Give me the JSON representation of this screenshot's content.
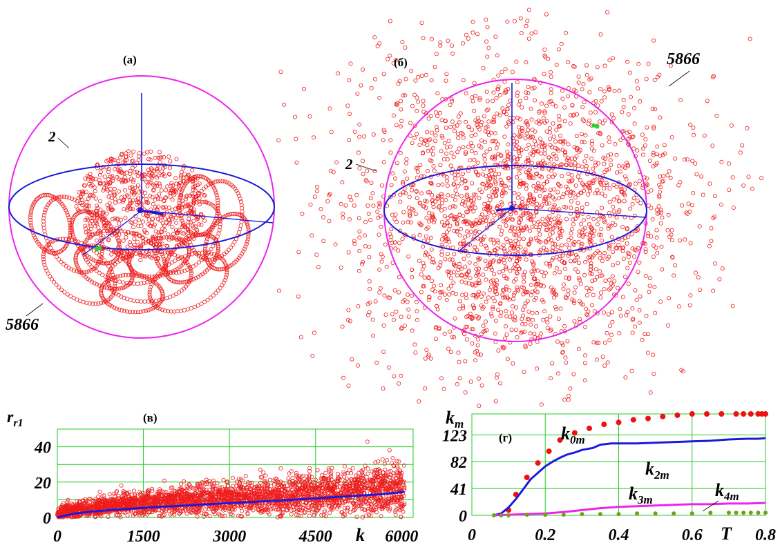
{
  "chart_data": [
    {
      "type": "scatter",
      "panel": "(а)",
      "labels": [
        "2",
        "5866"
      ],
      "colors": {
        "points": "#ee1c1c",
        "sphere": "#ee22ee",
        "axes": "#1a1adc",
        "marker": "#33cc33"
      }
    },
    {
      "type": "scatter",
      "panel": "(б)",
      "labels": [
        "2",
        "5866"
      ],
      "colors": {
        "points": "#ee1c1c",
        "sphere": "#ee22ee",
        "axes": "#1a1adc",
        "marker": "#33cc33"
      }
    },
    {
      "type": "scatter",
      "panel": "(в)",
      "xlabel": "k",
      "ylabel_main": "r",
      "ylabel_sub": "r1",
      "xticks": [
        0,
        1500,
        3000,
        4500,
        6000
      ],
      "yticks": [
        0,
        20,
        40
      ],
      "xlim": [
        0,
        6200
      ],
      "ylim": [
        0,
        50
      ],
      "grid": true,
      "series": [
        {
          "kind": "scatter",
          "color": "#ee1c1c",
          "x": [
            100,
            300,
            500,
            800,
            1000,
            1200,
            1500,
            1800,
            2000,
            2300,
            2600,
            3000,
            3300,
            3600,
            4000,
            4300,
            4600,
            5000,
            5300,
            5600,
            6000
          ],
          "y": [
            3,
            4,
            5,
            6,
            7,
            8,
            8,
            9,
            9,
            10,
            11,
            11,
            12,
            12,
            13,
            13,
            14,
            14,
            15,
            15,
            16
          ]
        },
        {
          "kind": "line",
          "color": "#1a1adc",
          "x": [
            0,
            300,
            600,
            900,
            1200,
            1500,
            1800,
            2100,
            2400,
            2700,
            3000,
            3300,
            3600,
            3900,
            4200,
            4500,
            4800,
            5100,
            5400,
            5700,
            6050
          ],
          "y": [
            0,
            2.2,
            3.3,
            4.1,
            4.8,
            5.4,
            6.0,
            6.5,
            7.0,
            7.6,
            8.1,
            8.6,
            9.1,
            9.6,
            10.2,
            10.8,
            11.4,
            12.0,
            12.6,
            13.3,
            14.5
          ]
        }
      ]
    },
    {
      "type": "line",
      "panel": "(г)",
      "xlabel": "T",
      "ylabel_main": "k",
      "ylabel_sub": "m",
      "xticks": [
        "0",
        "0.2",
        "0.4",
        "0.6",
        "0.8"
      ],
      "yticks": [
        "0",
        "41",
        "82",
        "123"
      ],
      "xlim": [
        0,
        0.8
      ],
      "ylim": [
        0,
        155
      ],
      "grid": true,
      "series": [
        {
          "name": "k",
          "sub": "0m",
          "kind": "points",
          "color": "#ee1111",
          "x": [
            0.1,
            0.12,
            0.15,
            0.18,
            0.21,
            0.24,
            0.28,
            0.32,
            0.36,
            0.4,
            0.44,
            0.48,
            0.52,
            0.56,
            0.6,
            0.64,
            0.68,
            0.72,
            0.74,
            0.76,
            0.78,
            0.79,
            0.8
          ],
          "y": [
            8,
            32,
            58,
            80,
            98,
            115,
            126,
            133,
            139,
            142,
            146,
            148,
            151,
            153,
            156,
            158,
            160,
            163,
            164,
            165,
            166,
            167,
            168
          ]
        },
        {
          "name": "k",
          "sub": "2m",
          "kind": "line",
          "color": "#1a1adc",
          "x": [
            0.06,
            0.08,
            0.1,
            0.12,
            0.14,
            0.16,
            0.18,
            0.2,
            0.22,
            0.24,
            0.26,
            0.28,
            0.3,
            0.33,
            0.35,
            0.38,
            0.4,
            0.45,
            0.5,
            0.55,
            0.6,
            0.65,
            0.7,
            0.75,
            0.78,
            0.8
          ],
          "y": [
            0,
            3,
            12,
            25,
            40,
            55,
            65,
            75,
            82,
            88,
            93,
            96,
            100,
            103,
            108,
            110,
            110,
            110,
            111,
            112,
            113,
            114,
            116,
            117,
            117,
            118
          ]
        },
        {
          "name": "k",
          "sub": "3m",
          "kind": "line",
          "color": "#ee22ee",
          "x": [
            0.06,
            0.1,
            0.15,
            0.2,
            0.25,
            0.3,
            0.35,
            0.4,
            0.45,
            0.5,
            0.55,
            0.6,
            0.65,
            0.7,
            0.75,
            0.8
          ],
          "y": [
            0,
            1,
            2,
            3,
            5,
            8,
            11,
            13,
            14,
            15,
            16,
            17,
            17,
            18,
            18,
            19
          ]
        },
        {
          "name": "k",
          "sub": "4m",
          "kind": "points",
          "color": "#7a9a1a",
          "x": [
            0.06,
            0.08,
            0.1,
            0.15,
            0.2,
            0.25,
            0.3,
            0.35,
            0.4,
            0.45,
            0.5,
            0.55,
            0.6,
            0.65,
            0.7,
            0.72,
            0.74,
            0.76,
            0.78,
            0.8
          ],
          "y": [
            0,
            0,
            0,
            1,
            1,
            1,
            2,
            2,
            2,
            3,
            3,
            3,
            3,
            4,
            4,
            4,
            4,
            4,
            4,
            4
          ]
        }
      ]
    }
  ]
}
